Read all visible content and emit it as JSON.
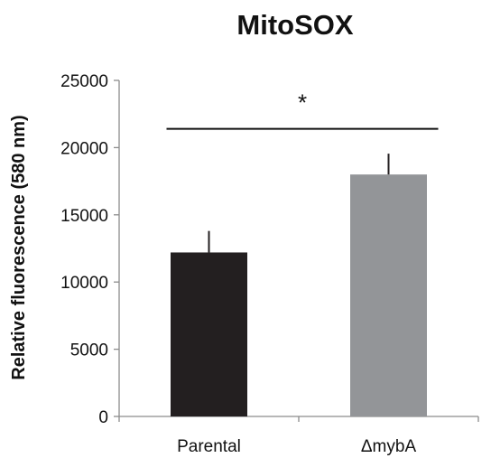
{
  "chart_data": {
    "type": "bar",
    "title": "MitoSOX",
    "xlabel": "",
    "ylabel": "Relative fluorescence (580 nm)",
    "ylim": [
      0,
      25000
    ],
    "yticks": [
      0,
      5000,
      10000,
      15000,
      20000,
      25000
    ],
    "categories": [
      "Parental",
      "ΔmybA"
    ],
    "series": [
      {
        "values": [
          12200,
          18000
        ],
        "error": [
          1600,
          1550
        ],
        "colors": [
          "#231f20",
          "#939598"
        ]
      }
    ],
    "annotations": [
      {
        "text": "*",
        "type": "significance-bracket",
        "between": [
          "Parental",
          "ΔmybA"
        ],
        "level": 21400
      }
    ],
    "grid": false,
    "legend": "none"
  }
}
